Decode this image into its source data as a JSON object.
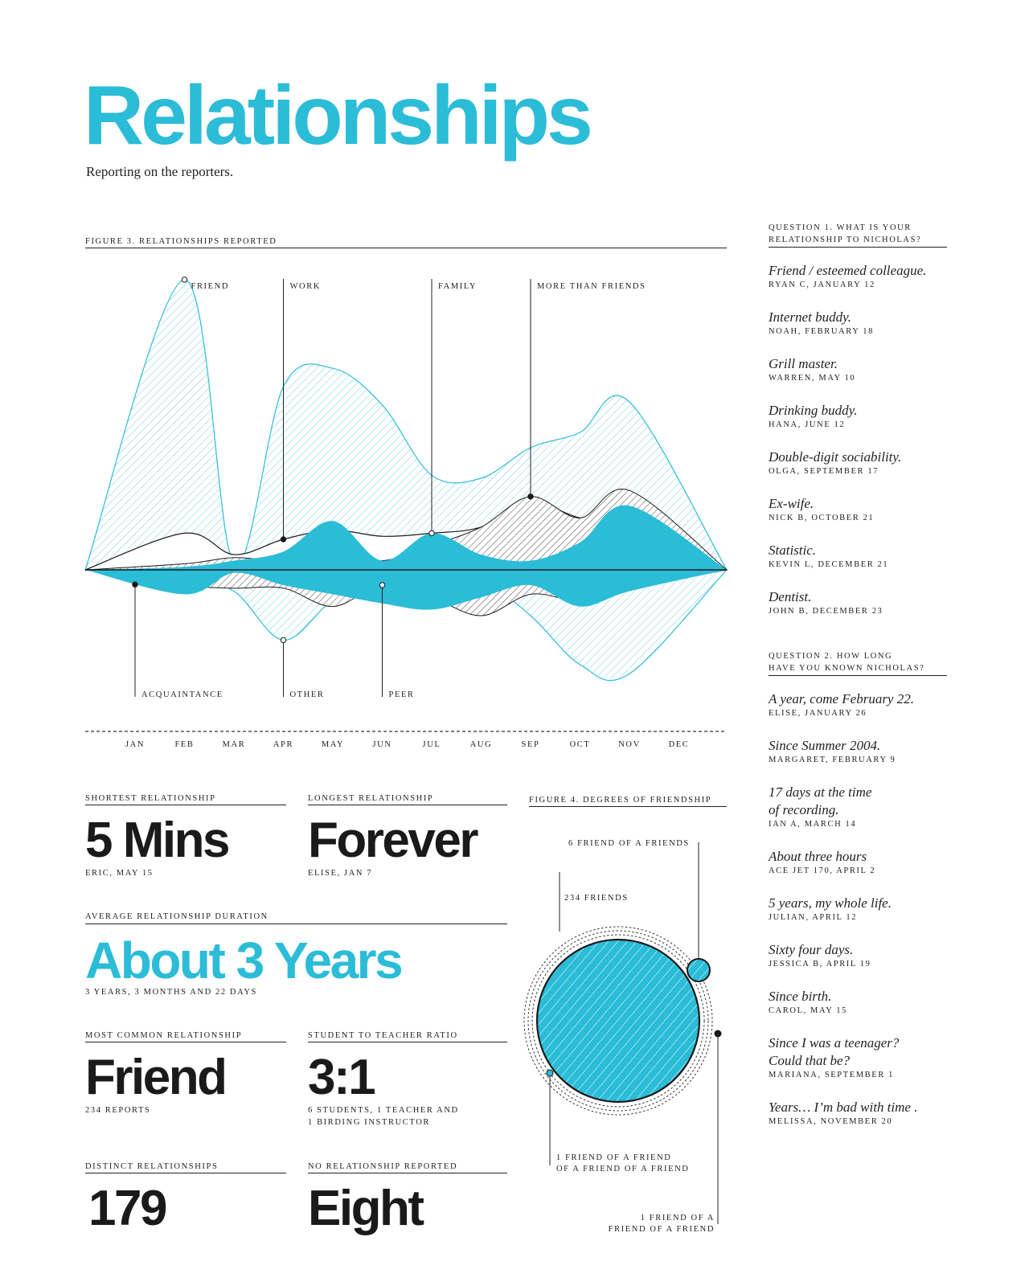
{
  "title": "Relationships",
  "subtitle": "Reporting on the reporters.",
  "colors": {
    "accent": "#2bbcd8",
    "ink": "#1a1a1a",
    "hatch_light": "#7fd3e6"
  },
  "figure3": {
    "label": "Figure 3. Relationships Reported",
    "top_labels": [
      "Friend",
      "Work",
      "Family",
      "More than friends"
    ],
    "bottom_labels": [
      "Acquaintance",
      "Other",
      "Peer"
    ]
  },
  "chart_data": [
    {
      "type": "area",
      "title": "Figure 3. Relationships Reported",
      "x": [
        "Jan",
        "Feb",
        "Mar",
        "Apr",
        "May",
        "Jun",
        "Jul",
        "Aug",
        "Sep",
        "Oct",
        "Nov",
        "Dec"
      ],
      "series": [
        {
          "name": "Friend",
          "values": [
            0.0,
            9.5,
            0.2,
            6.0,
            6.6,
            5.4,
            3.1,
            3.0,
            4.0,
            4.5,
            5.5,
            0.0
          ]
        },
        {
          "name": "Work",
          "values": [
            0.0,
            1.2,
            0.5,
            1.0,
            1.3,
            1.1,
            1.2,
            1.4,
            2.2,
            1.7,
            1.5,
            0.0
          ]
        },
        {
          "name": "Family",
          "values": [
            0.0,
            0.1,
            0.3,
            0.6,
            1.6,
            0.3,
            1.2,
            0.5,
            0.3,
            0.9,
            2.1,
            0.0
          ]
        },
        {
          "name": "More than friends",
          "values": [
            0.0,
            0.2,
            0.4,
            0.3,
            0.6,
            0.3,
            0.8,
            1.4,
            2.4,
            1.7,
            2.6,
            0.0
          ]
        },
        {
          "name": "Acquaintance",
          "values": [
            0.0,
            -0.8,
            -0.1,
            -0.5,
            -0.8,
            -1.1,
            -1.3,
            -0.9,
            -0.5,
            -1.2,
            -0.7,
            0.0
          ]
        },
        {
          "name": "Other",
          "values": [
            0.0,
            -0.3,
            -0.7,
            -2.3,
            -1.0,
            -0.4,
            -0.8,
            -0.4,
            -1.5,
            -3.1,
            -3.4,
            0.0
          ]
        },
        {
          "name": "Peer",
          "values": [
            0.0,
            -0.5,
            -0.6,
            -0.6,
            -1.2,
            -0.5,
            -0.9,
            -1.5,
            -0.8,
            -1.0,
            -0.6,
            0.0
          ]
        }
      ]
    },
    {
      "type": "other",
      "title": "Figure 4. Degrees of Friendship",
      "items": [
        {
          "label": "234 Friends",
          "count": 234
        },
        {
          "label": "6 Friend of a Friends",
          "count": 6
        },
        {
          "label": "1 Friend of a Friend of a Friend of a Friend",
          "count": 1
        },
        {
          "label": "1 Friend of a Friend of a Friend",
          "count": 1
        }
      ]
    }
  ],
  "stats": {
    "shortest": {
      "label": "Shortest relationship",
      "value": "5 Mins",
      "note": "Eric, May 15"
    },
    "longest": {
      "label": "Longest relationship",
      "value": "Forever",
      "note": "Elise, Jan 7"
    },
    "average": {
      "label": "Average relationship duration",
      "value": "About 3 Years",
      "note": "3 years, 3 months and 22 days"
    },
    "common": {
      "label": "Most common relationship",
      "value": "Friend",
      "note": "234 reports"
    },
    "ratio": {
      "label": "Student to teacher ratio",
      "value": "3:1",
      "note1": "6 students, 1 teacher and",
      "note2": "1 birding instructor"
    },
    "distinct": {
      "label": "Distinct relationships",
      "value": "179"
    },
    "none": {
      "label": "No relationship reported",
      "value": "Eight"
    }
  },
  "figure4": {
    "label": "Figure 4. Degrees of Friendship",
    "friends6": "6 Friend of a Friends",
    "friends234": "234 Friends",
    "fofof_1": "1 Friend of a Friend",
    "fofof_2": "of a Friend of a Friend",
    "fof_1": "1 Friend of a",
    "fof_2": "Friend of a Friend"
  },
  "q1": {
    "heading1": "Question 1. What is your",
    "heading2": "relationship to Nicholas?",
    "answers": [
      {
        "text": "Friend / esteemed colleague.",
        "who": "Ryan C, January 12"
      },
      {
        "text": "Internet buddy.",
        "who": "Noah, February 18"
      },
      {
        "text": "Grill master.",
        "who": "Warren, May 10"
      },
      {
        "text": "Drinking buddy.",
        "who": "Hana, June 12"
      },
      {
        "text": "Double-digit sociability.",
        "who": "Olga, September 17"
      },
      {
        "text": "Ex-wife.",
        "who": "Nick B, October 21"
      },
      {
        "text": "Statistic.",
        "who": "Kevin L, December 21"
      },
      {
        "text": "Dentist.",
        "who": "John B, December 23"
      }
    ]
  },
  "q2": {
    "heading1": "Question 2. How long",
    "heading2": "have you known Nicholas?",
    "answers": [
      {
        "text": "A year, come February 22.",
        "who": "Elise, January 26"
      },
      {
        "text": "Since Summer 2004.",
        "who": "Margaret, February 9"
      },
      {
        "text": "17 days at the time",
        "text2": "of recording.",
        "who": "Ian A, March 14"
      },
      {
        "text": "About three hours",
        "who": "Ace Jet 170, April 2"
      },
      {
        "text": "5 years, my whole life.",
        "who": "Julian, April 12"
      },
      {
        "text": "Sixty four days.",
        "who": "Jessica B, April 19"
      },
      {
        "text": "Since birth.",
        "who": "Carol, May 15"
      },
      {
        "text": "Since I was a teenager?",
        "text2": "Could that be?",
        "who": "Mariana, September 1"
      },
      {
        "text": "Years… I’m bad with time .",
        "who": "Melissa, November 20"
      }
    ]
  }
}
